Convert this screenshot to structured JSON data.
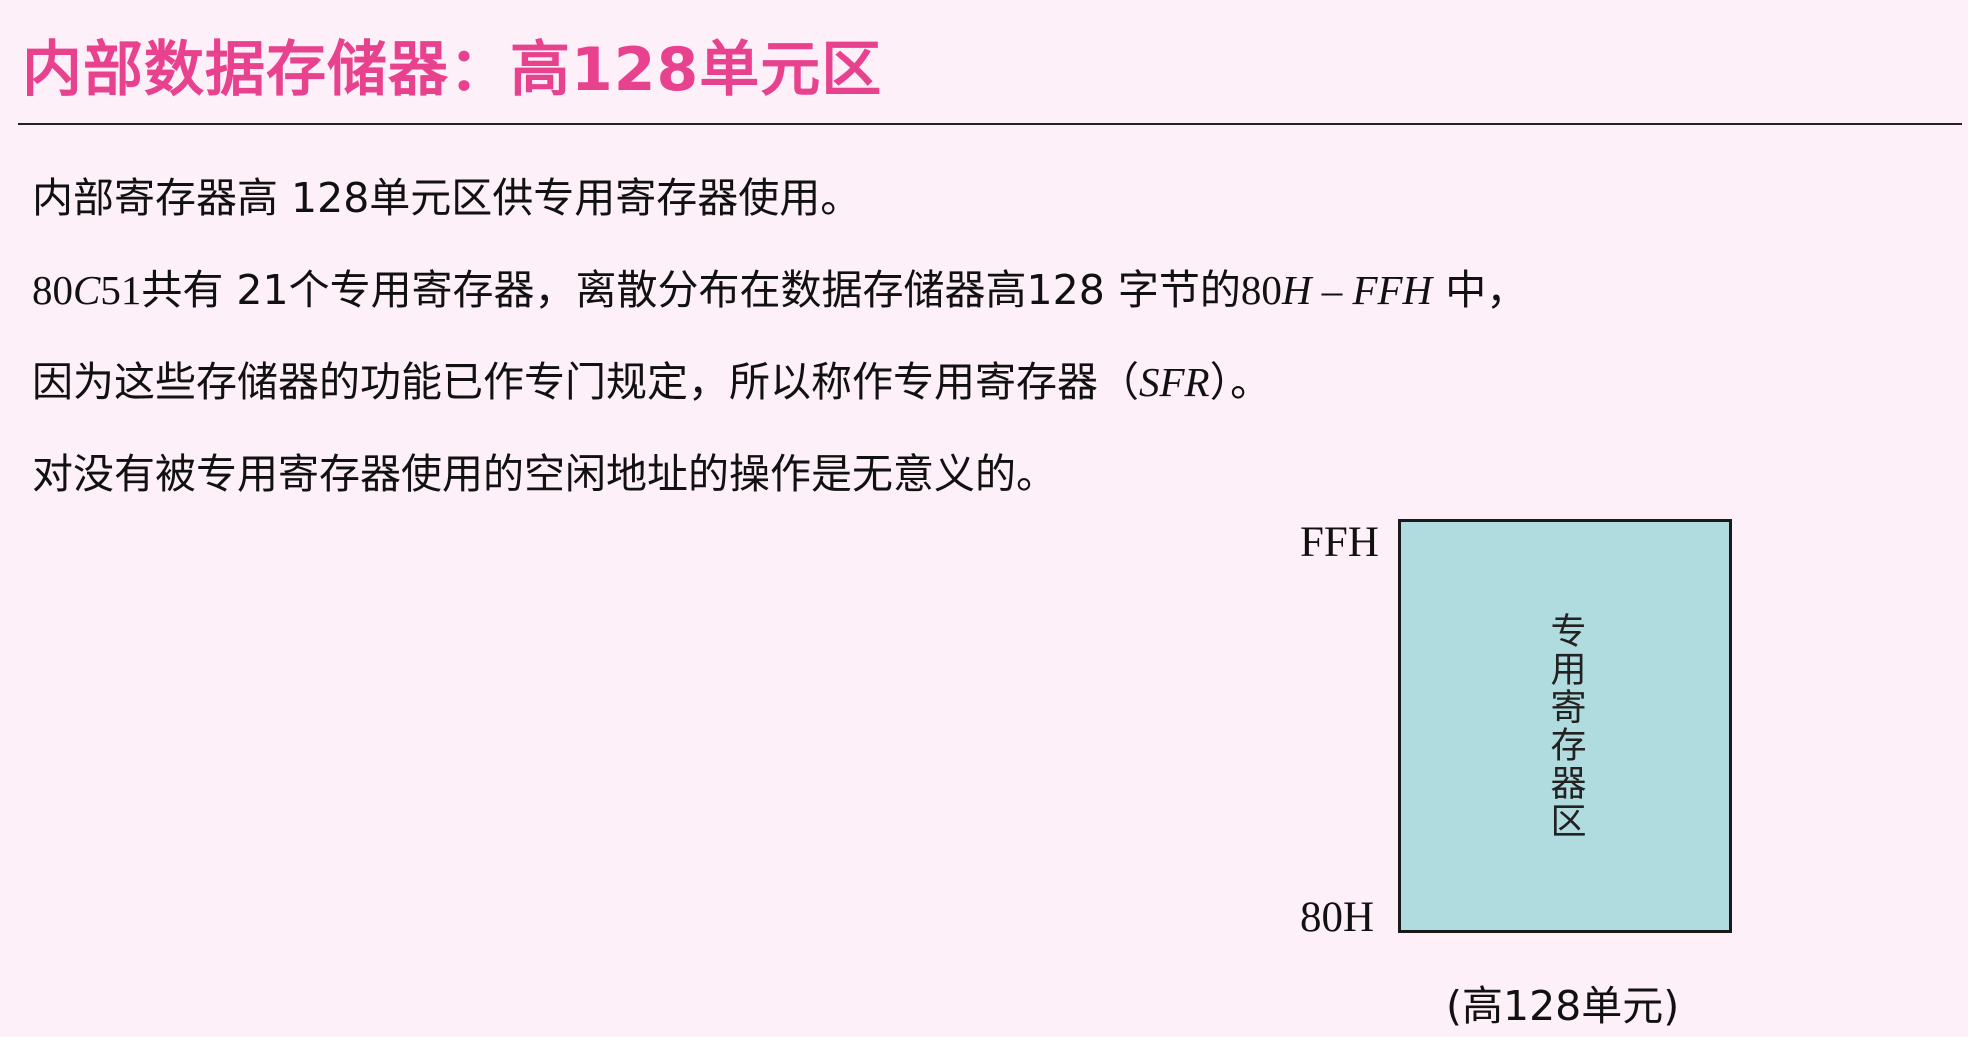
{
  "title": "内部数据存储器：高128单元区",
  "paragraphs": {
    "p1": "内部寄存器高 128单元区供专用寄存器使用。",
    "p2": {
      "n1": "80",
      "c": "C",
      "n2": "51",
      "t1": "共有 21个专用寄存器，离散分布在数据存储器高128 字节的",
      "n3": "80",
      "h1": "H",
      "dash": " – ",
      "ffh": "FFH",
      "t2": " 中，"
    },
    "p3": {
      "t1": "因为这些存储器的功能已作专门规定，所以称作专用寄存器（",
      "sfr": "SFR",
      "t2": "）。"
    },
    "p4": "对没有被专用寄存器使用的空闲地址的操作是无意义的。"
  },
  "diagram": {
    "top_address": "FFH",
    "bottom_address": "80H",
    "region_label": "专用寄存器区",
    "region_color": "#b1dcdf",
    "caption": "(高128单元)"
  },
  "colors": {
    "title": "#e8418e",
    "background": "#fdf0f8"
  }
}
